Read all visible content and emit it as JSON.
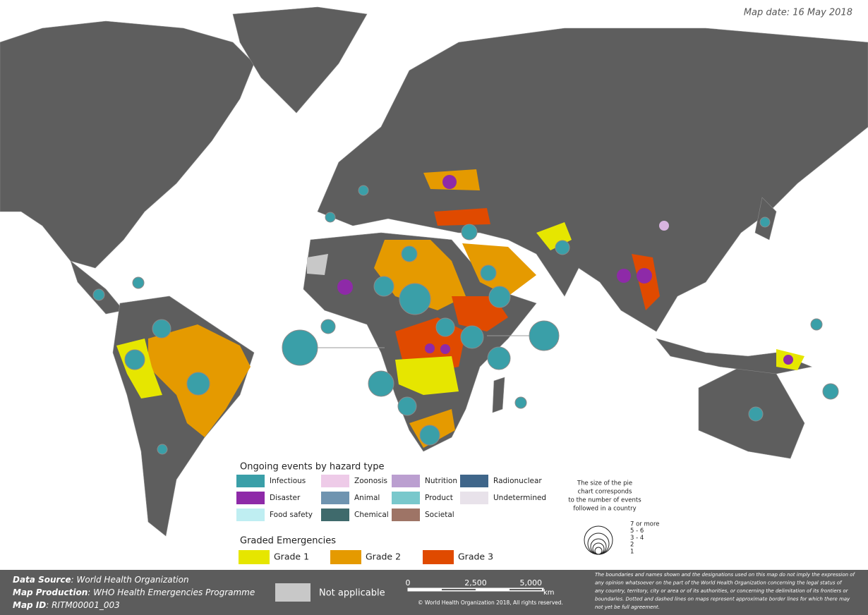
{
  "map_date": "Map date: 16 May 2018",
  "legend": {
    "hazard_title": "Ongoing events by hazard type",
    "hazard_types": [
      {
        "label": "Infectious",
        "color": "#3a9fa8"
      },
      {
        "label": "Disaster",
        "color": "#8e2aa8"
      },
      {
        "label": "Food safety",
        "color": "#bfeef2"
      },
      {
        "label": "Zoonosis",
        "color": "#eecbe8"
      },
      {
        "label": "Animal",
        "color": "#6f94b0"
      },
      {
        "label": "Chemical",
        "color": "#3f6a6c"
      },
      {
        "label": "Nutrition",
        "color": "#bb9fd0"
      },
      {
        "label": "Product",
        "color": "#79c8cc"
      },
      {
        "label": "Societal",
        "color": "#9e7466"
      },
      {
        "label": "Radionuclear",
        "color": "#3f668a"
      },
      {
        "label": "Undetermined",
        "color": "#e8e2ea"
      }
    ],
    "graded_title": "Graded Emergencies",
    "grades": [
      {
        "label": "Grade 1",
        "color": "#e6e600"
      },
      {
        "label": "Grade 2",
        "color": "#e59a00"
      },
      {
        "label": "Grade 3",
        "color": "#e04a00"
      }
    ],
    "size_note": [
      "The size of the pie",
      "chart corresponds",
      "to the number of events",
      "followed in a country"
    ],
    "size_classes": [
      "7 or more",
      "5 - 6",
      "3 - 4",
      "2",
      "1"
    ]
  },
  "footer": {
    "data_source": {
      "label": "Data Source",
      "value": ": World Health Organization"
    },
    "map_production": {
      "label": "Map Production",
      "value": ": WHO Health Emergencies Programme"
    },
    "map_id": {
      "label": "Map ID",
      "value": ": RITM00001_003"
    },
    "not_applicable": "Not applicable",
    "scale": {
      "ticks": [
        "0",
        "2,500",
        "5,000"
      ],
      "unit": "km"
    },
    "copyright": "© World Health Organization 2018, All rights reserved.",
    "disclaimer": [
      "The boundaries and names shown and the designations used on this map do not imply the expression of",
      "any opinion whatsoever on the part of the World Health Organization concerning the legal status of",
      "any country, territory, city or area or of its authorities, or concerning the delimitation of its frontiers or",
      "boundaries. Dotted and dashed lines on maps represent approximate border lines for which there may",
      "not yet be full agreement."
    ]
  }
}
